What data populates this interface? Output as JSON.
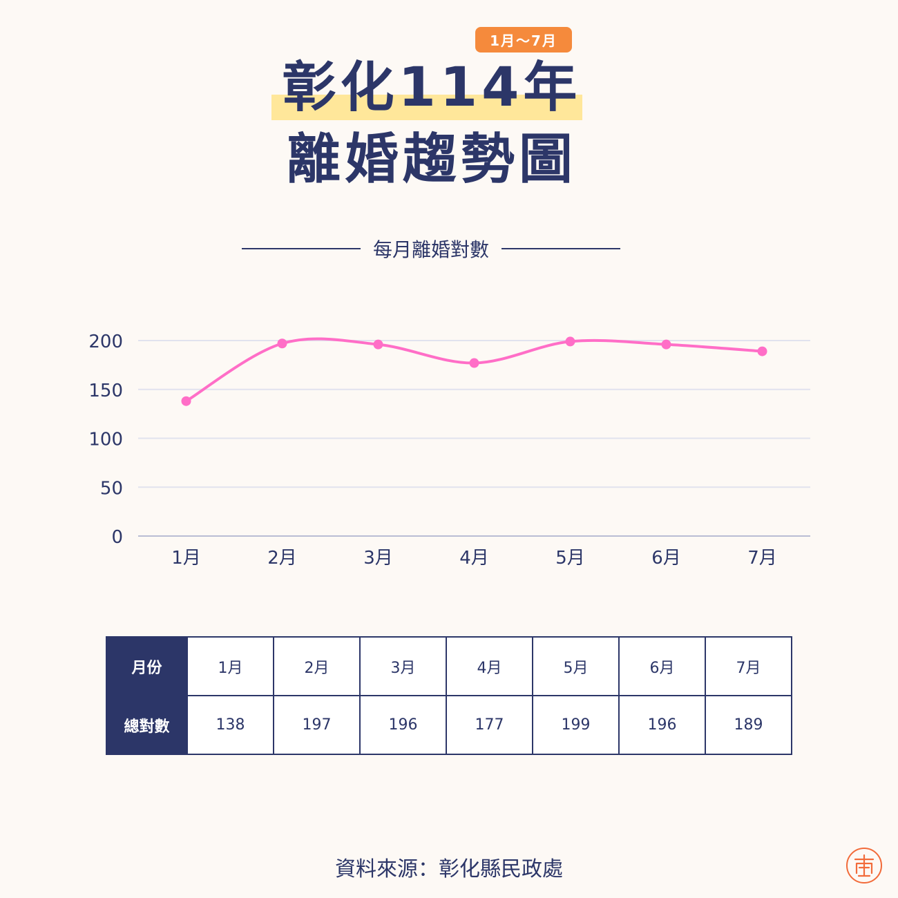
{
  "header": {
    "badge": "1月～7月",
    "title_line1": "彰化114年",
    "title_line2": "離婚趨勢圖"
  },
  "chart_subtitle": "每月離婚對數",
  "chart_data": {
    "type": "line",
    "title": "每月離婚對數",
    "categories": [
      "1月",
      "2月",
      "3月",
      "4月",
      "5月",
      "6月",
      "7月"
    ],
    "series": [
      {
        "values": [
          138,
          197,
          196,
          177,
          199,
          196,
          189
        ]
      }
    ],
    "yticks": [
      0,
      50,
      100,
      150,
      200
    ],
    "ylim": [
      0,
      200
    ],
    "grid": true,
    "line_color": "#ff6ec7"
  },
  "table": {
    "row_headers": [
      "月份",
      "總對數"
    ],
    "months": [
      "1月",
      "2月",
      "3月",
      "4月",
      "5月",
      "6月",
      "7月"
    ],
    "totals": [
      "138",
      "197",
      "196",
      "177",
      "199",
      "196",
      "189"
    ]
  },
  "footer": {
    "source": "資料來源：彰化縣民政處"
  },
  "colors": {
    "navy": "#2c3668",
    "accent_orange": "#f58a3c",
    "highlight_yellow": "#ffe79a",
    "line_pink": "#ff6ec7",
    "seal_orange": "#f26b3a"
  }
}
